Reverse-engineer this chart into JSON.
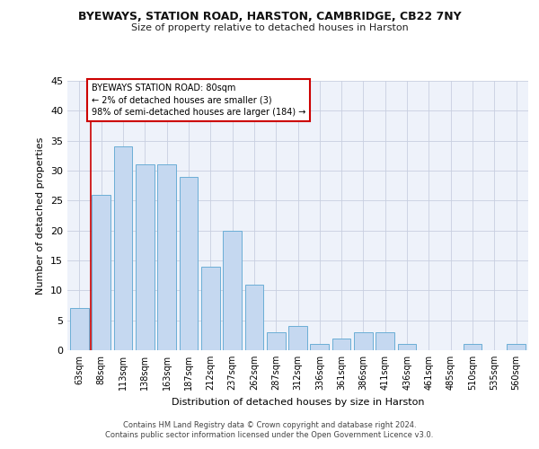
{
  "title1": "BYEWAYS, STATION ROAD, HARSTON, CAMBRIDGE, CB22 7NY",
  "title2": "Size of property relative to detached houses in Harston",
  "xlabel": "Distribution of detached houses by size in Harston",
  "ylabel": "Number of detached properties",
  "categories": [
    "63sqm",
    "88sqm",
    "113sqm",
    "138sqm",
    "163sqm",
    "187sqm",
    "212sqm",
    "237sqm",
    "262sqm",
    "287sqm",
    "312sqm",
    "336sqm",
    "361sqm",
    "386sqm",
    "411sqm",
    "436sqm",
    "461sqm",
    "485sqm",
    "510sqm",
    "535sqm",
    "560sqm"
  ],
  "values": [
    7,
    26,
    34,
    31,
    31,
    29,
    14,
    20,
    11,
    3,
    4,
    1,
    2,
    3,
    3,
    1,
    0,
    0,
    1,
    0,
    1
  ],
  "bar_color": "#c5d8f0",
  "bar_edge_color": "#6baed6",
  "annotation_text": "BYEWAYS STATION ROAD: 80sqm\n← 2% of detached houses are smaller (3)\n98% of semi-detached houses are larger (184) →",
  "annotation_box_color": "#ffffff",
  "annotation_box_edge": "#cc0000",
  "marker_line_color": "#cc0000",
  "ylim": [
    0,
    45
  ],
  "yticks": [
    0,
    5,
    10,
    15,
    20,
    25,
    30,
    35,
    40,
    45
  ],
  "bg_color": "#eef2fa",
  "grid_color": "#c8cfe0",
  "footer1": "Contains HM Land Registry data © Crown copyright and database right 2024.",
  "footer2": "Contains public sector information licensed under the Open Government Licence v3.0."
}
